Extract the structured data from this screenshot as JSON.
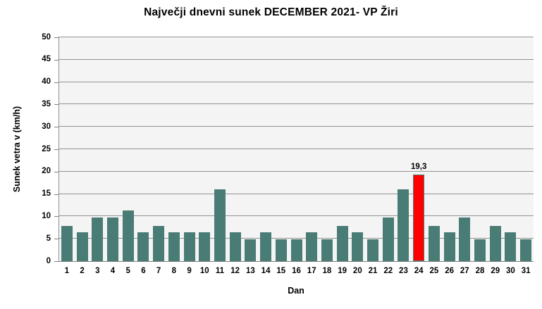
{
  "chart_data": {
    "type": "bar",
    "title": "Največji dnevni sunek DECEMBER 2021- VP Žiri",
    "xlabel": "Dan",
    "ylabel": "Sunek vetra v (km/h)",
    "categories": [
      1,
      2,
      3,
      4,
      5,
      6,
      7,
      8,
      9,
      10,
      11,
      12,
      13,
      14,
      15,
      16,
      17,
      18,
      19,
      20,
      21,
      22,
      23,
      24,
      25,
      26,
      27,
      28,
      29,
      30,
      31
    ],
    "values": [
      7.9,
      6.4,
      9.8,
      9.7,
      11.4,
      6.4,
      7.9,
      6.4,
      6.4,
      6.4,
      16.1,
      6.4,
      4.9,
      6.4,
      4.9,
      4.9,
      6.4,
      4.9,
      7.9,
      6.4,
      4.9,
      9.8,
      16.1,
      19.3,
      7.9,
      6.4,
      9.8,
      4.9,
      7.9,
      6.4,
      4.9
    ],
    "ylim": [
      0,
      50
    ],
    "ytick_step": 5,
    "grid": true,
    "legend": "none",
    "highlight": {
      "day": 24,
      "value": 19.3,
      "label": "19,3"
    }
  },
  "colors": {
    "background": "#FFFFFF",
    "plot_background": "#F4F4F4",
    "bar": "#4A7C76",
    "highlight": "#FF0000",
    "gridline": "#929292",
    "axis": "#7F7F7F",
    "text": "#000000"
  }
}
